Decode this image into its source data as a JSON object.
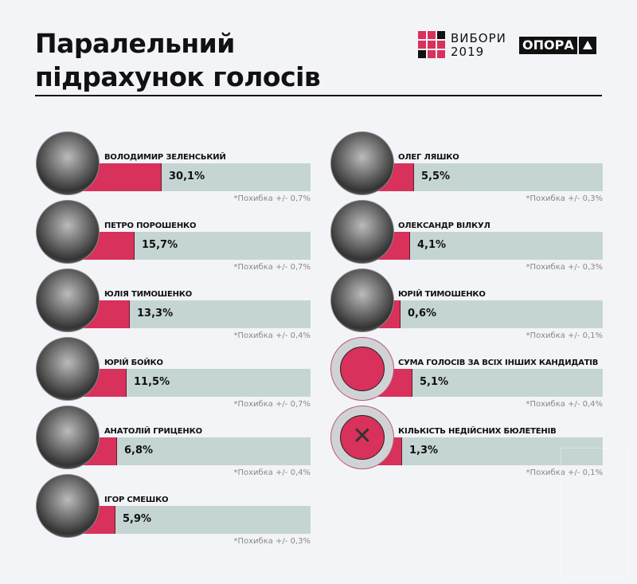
{
  "header": {
    "title_line1": "Паралельний",
    "title_line2": "підрахунок голосів",
    "logo_vybory_line1": "ВИБОРИ",
    "logo_vybory_line2": "2019",
    "logo_opora": "ОПОРА"
  },
  "colors": {
    "accent": "#d8315b",
    "bar_bg": "#c5d5d3",
    "background": "#f3f4f8"
  },
  "chart_data": {
    "type": "bar",
    "unit": "%",
    "left": [
      {
        "name": "ВОЛОДИМИР ЗЕЛЕНСЬКИЙ",
        "value": 30.1,
        "label": "30,1%",
        "error": "*Похибка +/- 0,7%"
      },
      {
        "name": "ПЕТРО ПОРОШЕНКО",
        "value": 15.7,
        "label": "15,7%",
        "error": "*Похибка +/- 0,7%"
      },
      {
        "name": "ЮЛІЯ ТИМОШЕНКО",
        "value": 13.3,
        "label": "13,3%",
        "error": "*Похибка +/- 0,4%"
      },
      {
        "name": "ЮРІЙ БОЙКО",
        "value": 11.5,
        "label": "11,5%",
        "error": "*Похибка +/- 0,7%"
      },
      {
        "name": "АНАТОЛІЙ ГРИЦЕНКО",
        "value": 6.8,
        "label": "6,8%",
        "error": "*Похибка +/- 0,4%"
      },
      {
        "name": "ІГОР СМЕШКО",
        "value": 5.9,
        "label": "5,9%",
        "error": "*Похибка +/- 0,3%"
      }
    ],
    "right": [
      {
        "name": "ОЛЕГ ЛЯШКО",
        "value": 5.5,
        "label": "5,5%",
        "error": "*Похибка +/- 0,3%",
        "icon": "photo"
      },
      {
        "name": "ОЛЕКСАНДР ВІЛКУЛ",
        "value": 4.1,
        "label": "4,1%",
        "error": "*Похибка +/- 0,3%",
        "icon": "photo"
      },
      {
        "name": "ЮРІЙ ТИМОШЕНКО",
        "value": 0.6,
        "label": "0,6%",
        "error": "*Похибка +/- 0,1%",
        "icon": "photo"
      },
      {
        "name": "СУМА ГОЛОСІВ ЗА ВСІХ ІНШИХ КАНДИДАТІВ",
        "value": 5.1,
        "label": "5,1%",
        "error": "*Похибка +/- 0,4%",
        "icon": "circle-icon"
      },
      {
        "name": "КІЛЬКІСТЬ НЕДІЙСНИХ БЮЛЕТЕНІВ",
        "value": 1.3,
        "label": "1,3%",
        "error": "*Похибка +/- 0,1%",
        "icon": "x-icon"
      }
    ]
  }
}
